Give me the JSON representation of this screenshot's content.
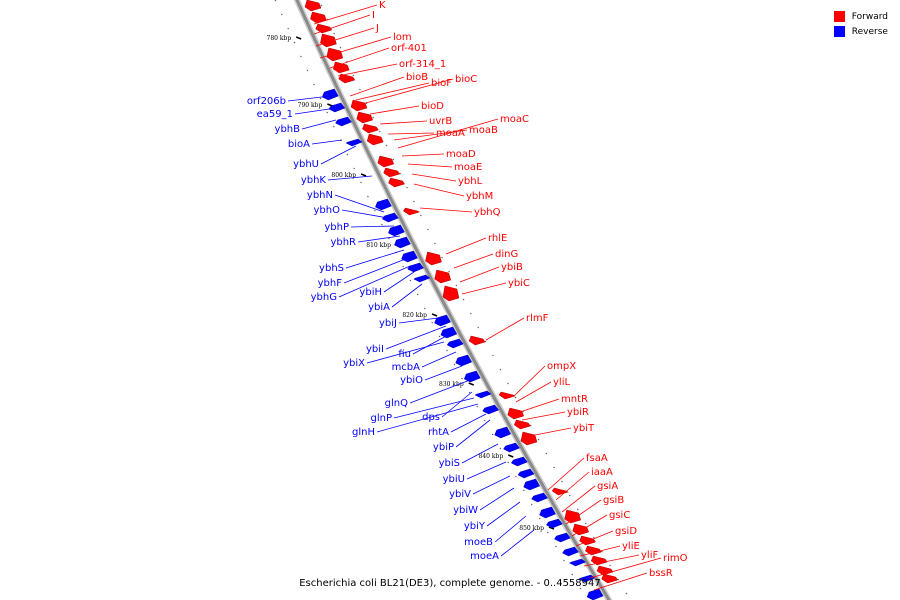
{
  "title": "Escherichia coli BL21(DE3), complete genome. - 0..4558947",
  "colors": {
    "forward": "#ff0000",
    "reverse": "#0000ff",
    "backbone": "#8a8a8a"
  },
  "legend": [
    {
      "label": "Forward",
      "color": "#ff0000"
    },
    {
      "label": "Reverse",
      "color": "#0000ff"
    }
  ],
  "ticks": [
    "780 kbp",
    "790 kbp",
    "800 kbp",
    "810 kbp",
    "820 kbp",
    "830 kbp",
    "840 kbp",
    "850 kbp"
  ],
  "forward_genes": [
    "K",
    "I",
    "J",
    "lom",
    "orf-401",
    "orf-314_1",
    "bioB",
    "bioF",
    "bioC",
    "bioD",
    "uvrB",
    "moaA",
    "moaB",
    "moaC",
    "moaD",
    "moaE",
    "ybhL",
    "ybhM",
    "ybhQ",
    "rhlE",
    "dinG",
    "ybiB",
    "ybiC",
    "rlmF",
    "ompX",
    "yliL",
    "mntR",
    "ybiR",
    "ybiT",
    "fsaA",
    "iaaA",
    "gsiA",
    "gsiB",
    "gsiC",
    "gsiD",
    "yliE",
    "yliF",
    "rimO",
    "bssR"
  ],
  "reverse_genes": [
    "orf206b",
    "ea59_1",
    "ybhB",
    "bioA",
    "ybhU",
    "ybhK",
    "ybhN",
    "ybhO",
    "ybhP",
    "ybhR",
    "ybhS",
    "ybhF",
    "ybhG",
    "ybiH",
    "ybiA",
    "ybiJ",
    "ybiI",
    "fiu",
    "ybiX",
    "mcbA",
    "ybiO",
    "glnQ",
    "dps",
    "glnP",
    "glnH",
    "rhtA",
    "ybiP",
    "ybiS",
    "ybiU",
    "ybiV",
    "ybiW",
    "ybiY",
    "moeB",
    "moeA"
  ]
}
